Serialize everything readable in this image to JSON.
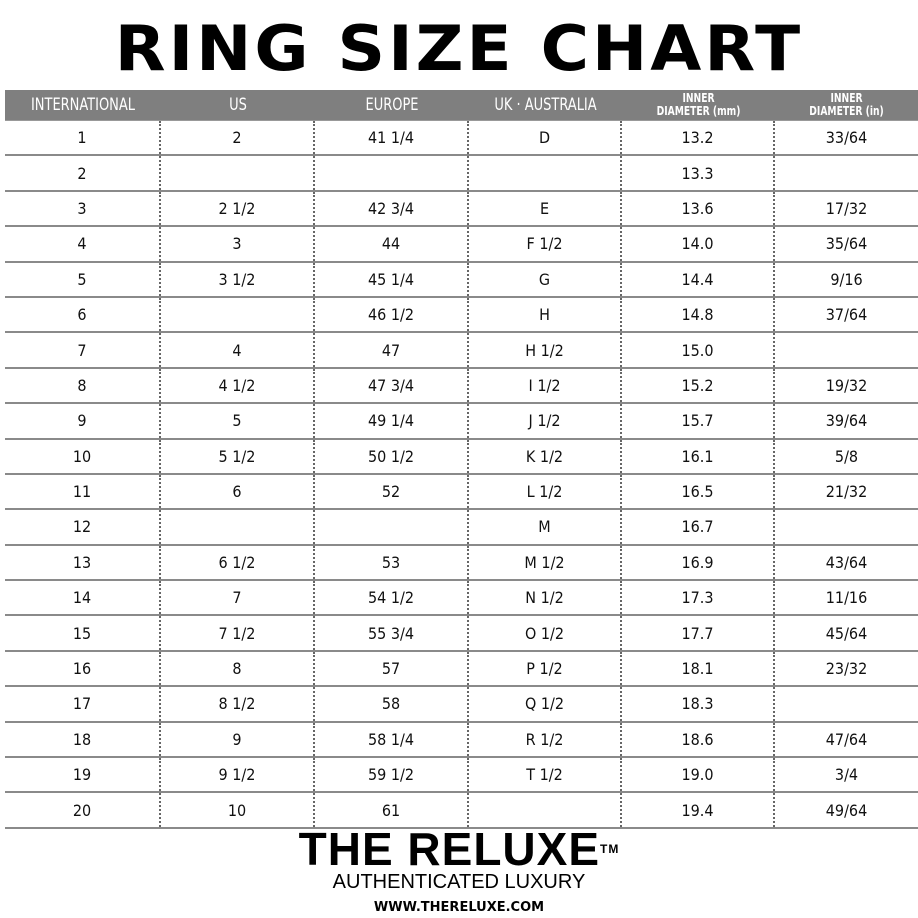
{
  "title": "RING SIZE CHART",
  "columns": [
    "INTERNATIONAL",
    "US",
    "EUROPE",
    "UK · AUSTRALIA",
    "INNER\nDIAMETER (mm)",
    "INNER\nDIAMETER (in)"
  ],
  "rows": [
    [
      "1",
      "2",
      "41 1/4",
      "D",
      "13.2",
      "33/64"
    ],
    [
      "2",
      "",
      "",
      "",
      "13.3",
      ""
    ],
    [
      "3",
      "2 1/2",
      "42 3/4",
      "E",
      "13.6",
      "17/32"
    ],
    [
      "4",
      "3",
      "44",
      "F 1/2",
      "14.0",
      "35/64"
    ],
    [
      "5",
      "3 1/2",
      "45 1/4",
      "G",
      "14.4",
      "9/16"
    ],
    [
      "6",
      "",
      "46 1/2",
      "H",
      "14.8",
      "37/64"
    ],
    [
      "7",
      "4",
      "47",
      "H 1/2",
      "15.0",
      ""
    ],
    [
      "8",
      "4 1/2",
      "47 3/4",
      "I 1/2",
      "15.2",
      "19/32"
    ],
    [
      "9",
      "5",
      "49 1/4",
      "J 1/2",
      "15.7",
      "39/64"
    ],
    [
      "10",
      "5 1/2",
      "50 1/2",
      "K 1/2",
      "16.1",
      "5/8"
    ],
    [
      "11",
      "6",
      "52",
      "L 1/2",
      "16.5",
      "21/32"
    ],
    [
      "12",
      "",
      "",
      "M",
      "16.7",
      ""
    ],
    [
      "13",
      "6 1/2",
      "53",
      "M 1/2",
      "16.9",
      "43/64"
    ],
    [
      "14",
      "7",
      "54 1/2",
      "N 1/2",
      "17.3",
      "11/16"
    ],
    [
      "15",
      "7 1/2",
      "55 3/4",
      "O 1/2",
      "17.7",
      "45/64"
    ],
    [
      "16",
      "8",
      "57",
      "P 1/2",
      "18.1",
      "23/32"
    ],
    [
      "17",
      "8 1/2",
      "58",
      "Q 1/2",
      "18.3",
      ""
    ],
    [
      "18",
      "9",
      "58 1/4",
      "R 1/2",
      "18.6",
      "47/64"
    ],
    [
      "19",
      "9 1/2",
      "59 1/2",
      "T 1/2",
      "19.0",
      "3/4"
    ],
    [
      "20",
      "10",
      "61",
      "",
      "19.4",
      "49/64"
    ]
  ],
  "brand": {
    "logo": "THE RELUXE",
    "tm": "TM",
    "tagline": "AUTHENTICATED LUXURY",
    "url": "WWW.THERELUXE.COM"
  },
  "colors": {
    "header_bg": "#7f7f7f",
    "header_text": "#ffffff"
  }
}
